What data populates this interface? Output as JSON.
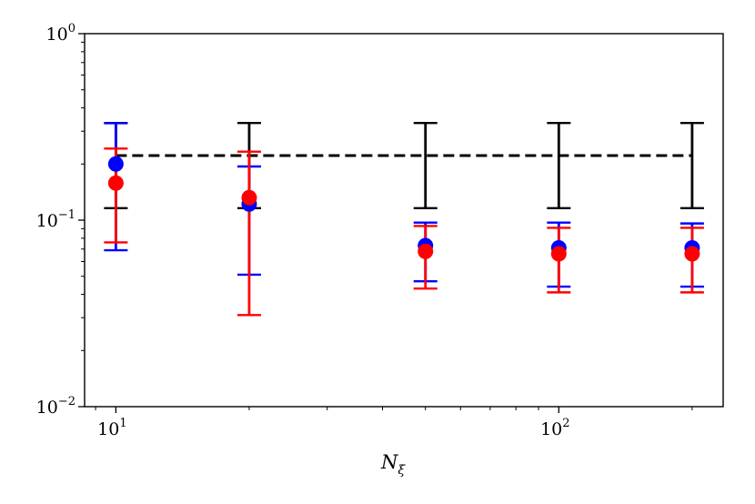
{
  "chart_data": {
    "type": "scatter",
    "title": "",
    "xlabel": "N_ξ",
    "xlabel_main": "N",
    "xlabel_sub": "ξ",
    "ylabel": "",
    "xscale": "log",
    "yscale": "log",
    "xlim": [
      8.5,
      235
    ],
    "ylim": [
      0.01,
      1
    ],
    "grid": false,
    "x": [
      10,
      20,
      50,
      100,
      200
    ],
    "x_ticks": [
      {
        "value": 10,
        "base": "10",
        "exp": "1"
      },
      {
        "value": 100,
        "base": "10",
        "exp": "2"
      }
    ],
    "y_ticks": [
      {
        "value": 1,
        "base": "10",
        "exp": "0"
      },
      {
        "value": 0.1,
        "base": "10",
        "exp": "−1"
      },
      {
        "value": 0.01,
        "base": "10",
        "exp": "−2"
      }
    ],
    "reference_line": {
      "y": 0.222,
      "color": "#000000",
      "style": "dashed"
    },
    "series": [
      {
        "color": "#000000",
        "marker": "none",
        "lower": [
          0.116,
          0.116,
          0.116,
          0.116,
          0.116
        ],
        "upper": [
          0.332,
          0.332,
          0.332,
          0.332,
          0.332
        ]
      },
      {
        "color": "#0000ff",
        "marker": "circle",
        "values": [
          0.2,
          0.122,
          0.073,
          0.071,
          0.071
        ],
        "lower": [
          0.069,
          0.051,
          0.047,
          0.044,
          0.044
        ],
        "upper": [
          0.331,
          0.194,
          0.097,
          0.097,
          0.096
        ]
      },
      {
        "color": "#ff0000",
        "marker": "circle",
        "values": [
          0.158,
          0.132,
          0.068,
          0.066,
          0.066
        ],
        "lower": [
          0.076,
          0.031,
          0.043,
          0.041,
          0.041
        ],
        "upper": [
          0.242,
          0.233,
          0.093,
          0.091,
          0.091
        ]
      }
    ]
  }
}
